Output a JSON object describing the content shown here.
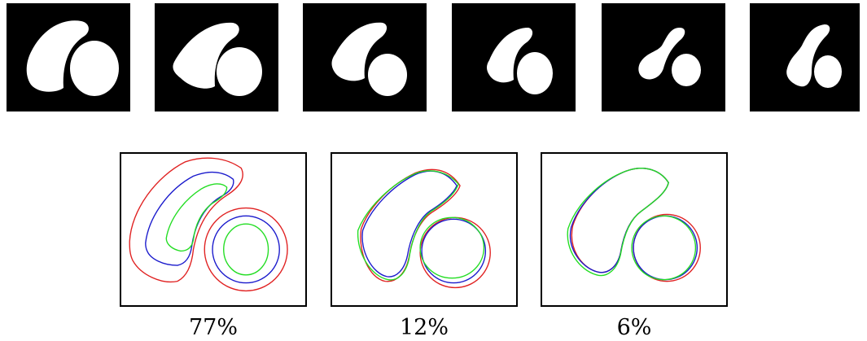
{
  "figure": {
    "thumbnails": [
      {
        "name": "thumb-1"
      },
      {
        "name": "thumb-2"
      },
      {
        "name": "thumb-3"
      },
      {
        "name": "thumb-4"
      },
      {
        "name": "thumb-5"
      },
      {
        "name": "thumb-6"
      }
    ],
    "contour_colors": {
      "outer": "#e02020",
      "middle": "#1a1acc",
      "inner": "#22dd22"
    },
    "panels": [
      {
        "caption": "77%"
      },
      {
        "caption": "12%"
      },
      {
        "caption": "6%"
      }
    ]
  }
}
